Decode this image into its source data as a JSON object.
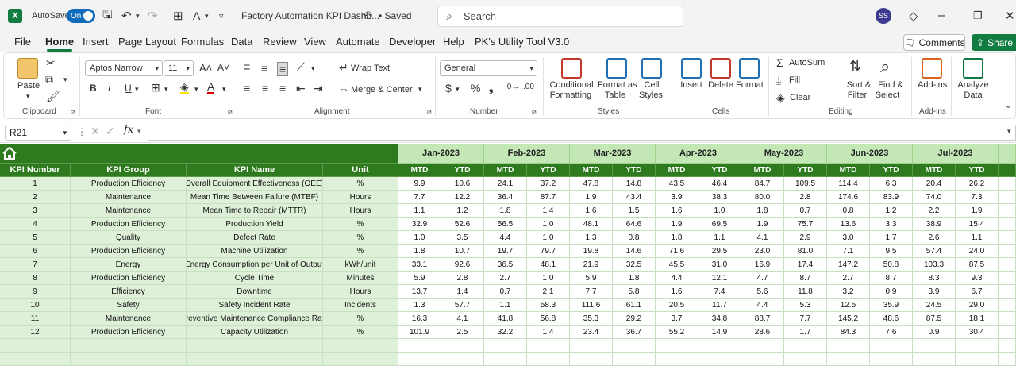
{
  "title_bar": {
    "app_icon": "X",
    "autosave_label": "AutoSave",
    "autosave_state": "On",
    "document_title": "Factory Automation KPI Dashb...",
    "saved_label": "• Saved",
    "search_placeholder": "Search",
    "user_initials": "SS"
  },
  "menu": {
    "tabs": [
      "File",
      "Home",
      "Insert",
      "Page Layout",
      "Formulas",
      "Data",
      "Review",
      "View",
      "Automate",
      "Developer",
      "Help",
      "PK's Utility Tool V3.0"
    ],
    "active_tab": "Home",
    "comments_label": "Comments",
    "share_label": "Share"
  },
  "ribbon": {
    "paste_label": "Paste",
    "font_name": "Aptos Narrow",
    "font_size": "11",
    "wrap_text_label": "Wrap Text",
    "merge_center_label": "Merge & Center",
    "number_format": "General",
    "conditional_formatting_label": [
      "Conditional",
      "Formatting"
    ],
    "format_as_table_label": [
      "Format as",
      "Table"
    ],
    "cell_styles_label": [
      "Cell",
      "Styles"
    ],
    "insert_label": "Insert",
    "delete_label": "Delete",
    "format_label": "Format",
    "autosum_label": "AutoSum",
    "fill_label": "Fill",
    "clear_label": "Clear",
    "sort_filter_label": [
      "Sort &",
      "Filter"
    ],
    "find_select_label": [
      "Find &",
      "Select"
    ],
    "addins_label": "Add-ins",
    "analyze_data_label": [
      "Analyze",
      "Data"
    ],
    "group_labels": {
      "clipboard": "Clipboard",
      "font": "Font",
      "alignment": "Alignment",
      "number": "Number",
      "styles": "Styles",
      "cells": "Cells",
      "editing": "Editing",
      "addins": "Add-ins"
    }
  },
  "formula_bar": {
    "name_box": "R21",
    "formula": ""
  },
  "sheet": {
    "columns": [
      "KPI Number",
      "KPI Group",
      "KPI Name",
      "Unit"
    ],
    "months": [
      "Jan-2023",
      "Feb-2023",
      "Mar-2023",
      "Apr-2023",
      "May-2023",
      "Jun-2023",
      "Jul-2023"
    ],
    "subheaders": [
      "MTD",
      "YTD"
    ],
    "rows": [
      {
        "num": "1",
        "group": "Production Efficiency",
        "name": "Overall Equipment Effectiveness (OEE)",
        "unit": "%",
        "vals": [
          "9.9",
          "10.6",
          "24.1",
          "37.2",
          "47.8",
          "14.8",
          "43.5",
          "46.4",
          "84.7",
          "109.5",
          "114.4",
          "6.3",
          "20.4",
          "26.2"
        ]
      },
      {
        "num": "2",
        "group": "Maintenance",
        "name": "Mean Time Between Failure (MTBF)",
        "unit": "Hours",
        "vals": [
          "7.7",
          "12.2",
          "36.4",
          "87.7",
          "1.9",
          "43.4",
          "3.9",
          "38.3",
          "80.0",
          "2.8",
          "174.6",
          "83.9",
          "74.0",
          "7.3"
        ]
      },
      {
        "num": "3",
        "group": "Maintenance",
        "name": "Mean Time to Repair (MTTR)",
        "unit": "Hours",
        "vals": [
          "1.1",
          "1.2",
          "1.8",
          "1.4",
          "1.6",
          "1.5",
          "1.6",
          "1.0",
          "1.8",
          "0.7",
          "0.8",
          "1.2",
          "2.2",
          "1.9"
        ]
      },
      {
        "num": "4",
        "group": "Production Efficiency",
        "name": "Production Yield",
        "unit": "%",
        "vals": [
          "32.9",
          "52.6",
          "56.5",
          "1.0",
          "48.1",
          "64.6",
          "1.9",
          "69.5",
          "1.9",
          "75.7",
          "13.6",
          "3.3",
          "38.9",
          "15.4"
        ]
      },
      {
        "num": "5",
        "group": "Quality",
        "name": "Defect Rate",
        "unit": "%",
        "vals": [
          "1.0",
          "3.5",
          "4.4",
          "1.0",
          "1.3",
          "0.8",
          "1.8",
          "1.1",
          "4.1",
          "2.9",
          "3.0",
          "1.7",
          "2.6",
          "1.1"
        ]
      },
      {
        "num": "6",
        "group": "Production Efficiency",
        "name": "Machine Utilization",
        "unit": "%",
        "vals": [
          "1.8",
          "10.7",
          "19.7",
          "79.7",
          "19.8",
          "14.6",
          "71.6",
          "29.5",
          "23.0",
          "81.0",
          "7.1",
          "9.5",
          "57.4",
          "24.0"
        ]
      },
      {
        "num": "7",
        "group": "Energy",
        "name": "Energy Consumption per Unit of Output",
        "unit": "kWh/unit",
        "vals": [
          "33.1",
          "92.6",
          "36.5",
          "48.1",
          "21.9",
          "32.5",
          "45.5",
          "31.0",
          "16.9",
          "17.4",
          "147.2",
          "50.8",
          "103.3",
          "87.5"
        ]
      },
      {
        "num": "8",
        "group": "Production Efficiency",
        "name": "Cycle Time",
        "unit": "Minutes",
        "vals": [
          "5.9",
          "2.8",
          "2.7",
          "1.0",
          "5.9",
          "1.8",
          "4.4",
          "12.1",
          "4.7",
          "8.7",
          "2.7",
          "8.7",
          "8.3",
          "9.3"
        ]
      },
      {
        "num": "9",
        "group": "Efficiency",
        "name": "Downtime",
        "unit": "Hours",
        "vals": [
          "13.7",
          "1.4",
          "0.7",
          "2.1",
          "7.7",
          "5.8",
          "1.6",
          "7.4",
          "5.6",
          "11.8",
          "3.2",
          "0.9",
          "3.9",
          "6.7"
        ]
      },
      {
        "num": "10",
        "group": "Safety",
        "name": "Safety Incident Rate",
        "unit": "Incidents",
        "vals": [
          "1.3",
          "57.7",
          "1.1",
          "58.3",
          "111.6",
          "61.1",
          "20.5",
          "11.7",
          "4.4",
          "5.3",
          "12.5",
          "35.9",
          "24.5",
          "29.0"
        ]
      },
      {
        "num": "11",
        "group": "Maintenance",
        "name": "Preventive Maintenance Compliance Rate",
        "unit": "%",
        "vals": [
          "16.3",
          "4.1",
          "41.8",
          "56.8",
          "35.3",
          "29.2",
          "3.7",
          "34.8",
          "88.7",
          "7.7",
          "145.2",
          "48.6",
          "87.5",
          "18.1"
        ]
      },
      {
        "num": "12",
        "group": "Production Efficiency",
        "name": "Capacity Utilization",
        "unit": "%",
        "vals": [
          "101.9",
          "2.5",
          "32.2",
          "1.4",
          "23.4",
          "36.7",
          "55.2",
          "14.9",
          "28.6",
          "1.7",
          "84.3",
          "7.6",
          "0.9",
          "30.4"
        ]
      }
    ]
  }
}
